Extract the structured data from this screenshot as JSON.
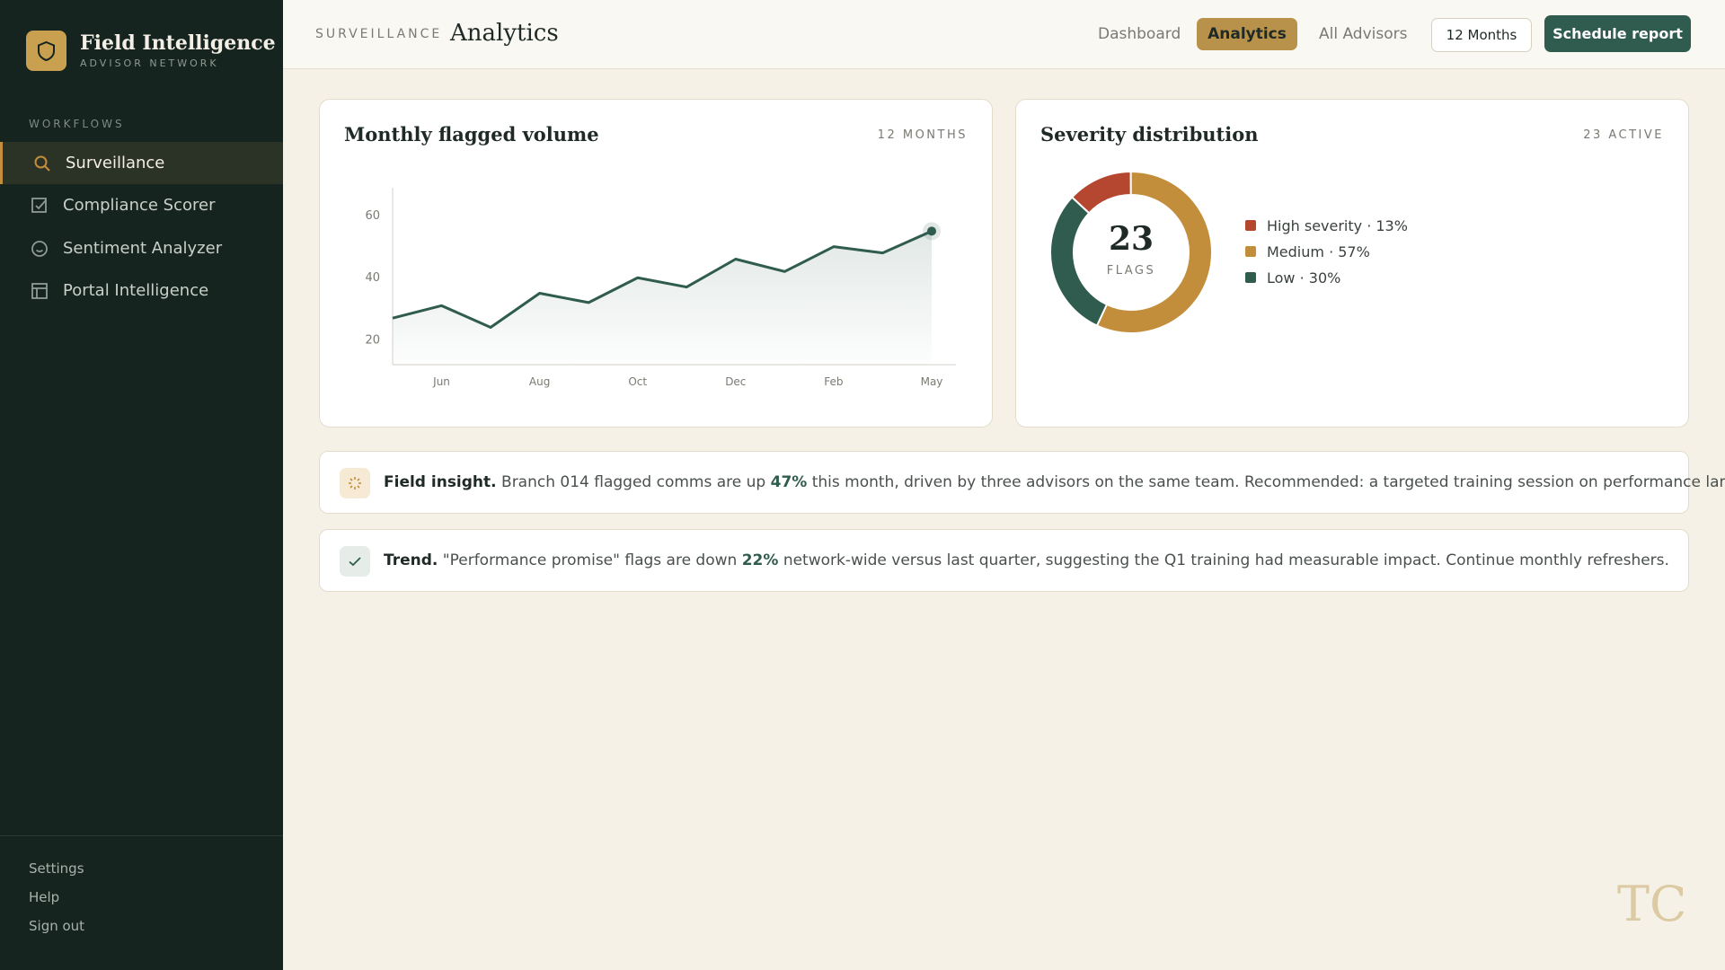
{
  "sidebar": {
    "brand": "Field Intelligence",
    "brand_sub": "ADVISOR NETWORK",
    "section": "WORKFLOWS",
    "nav": [
      "Surveillance",
      "Compliance Scorer",
      "Sentiment Analyzer",
      "Portal Intelligence"
    ],
    "footer": [
      "Settings",
      "Help",
      "Sign out"
    ]
  },
  "header": {
    "eyebrow": "SURVEILLANCE",
    "title": "Analytics",
    "tabs": [
      "Dashboard",
      "Analytics",
      "All Advisors"
    ],
    "range": "12 Months",
    "action": "Schedule report"
  },
  "chart_data": [
    {
      "type": "line",
      "title": "Monthly flagged volume",
      "badge": "12 MONTHS",
      "categories": [
        null,
        "Jun",
        null,
        "Aug",
        null,
        "Oct",
        null,
        "Dec",
        null,
        "Feb",
        null,
        "May"
      ],
      "values": [
        27,
        31,
        24,
        35,
        32,
        40,
        37,
        46,
        42,
        50,
        48,
        55
      ],
      "color": "#2f5c4e",
      "ylim": [
        12,
        69
      ],
      "yticks": [
        20,
        40,
        60
      ]
    },
    {
      "type": "pie",
      "title": "Severity distribution",
      "badge": "23 ACTIVE",
      "center_value": "23",
      "center_label": "FLAGS",
      "categories": [
        "High severity",
        "Medium",
        "Low"
      ],
      "values": [
        13,
        57,
        30
      ],
      "value_labels": [
        "High severity · 13%",
        "Medium · 57%",
        "Low · 30%"
      ],
      "colors": [
        "#b5462f",
        "#c38e3b",
        "#2f5c4e"
      ]
    }
  ],
  "insights": [
    {
      "label": "Field insight.",
      "pre": " Branch 014 flagged comms are up ",
      "highlight": "47%",
      "post": " this month, driven by three advisors on the same team. Recommended: a targeted training session on performance language."
    },
    {
      "label": "Trend.",
      "pre": " \"Performance promise\" flags are down ",
      "highlight": "22%",
      "post": " network-wide versus last quarter, suggesting the Q1 training had measurable impact. Continue monthly refreshers."
    }
  ],
  "watermark": "TC"
}
